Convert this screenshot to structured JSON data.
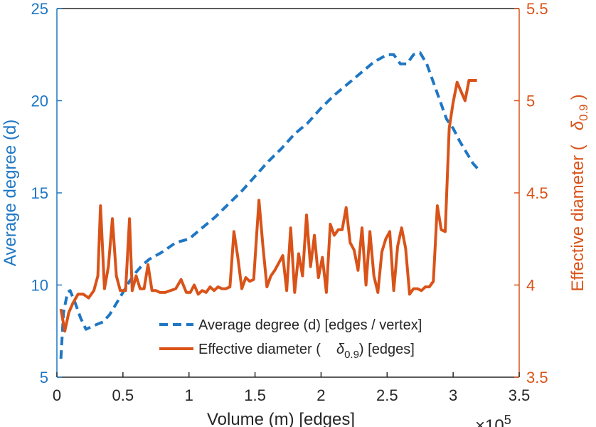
{
  "chart_data": {
    "type": "line",
    "xlabel": "Volume (m) [edges]",
    "x_exponent_label": "×10",
    "x_exponent_power": "5",
    "xlim": [
      0,
      3.5
    ],
    "xticks": [
      "0",
      "0.5",
      "1",
      "1.5",
      "2",
      "2.5",
      "3",
      "3.5"
    ],
    "left_axis": {
      "label": "Average degree (d)",
      "ylim": [
        5,
        25
      ],
      "ticks": [
        "5",
        "10",
        "15",
        "20",
        "25"
      ],
      "color": "#1f77c4"
    },
    "right_axis": {
      "label_main": "Effective diameter (",
      "label_symbol": "δ",
      "label_sub": "0.9",
      "label_close": ")",
      "ylim": [
        3.5,
        5.5
      ],
      "ticks": [
        "3.5",
        "4",
        "4.5",
        "5",
        "5.5"
      ],
      "color": "#d95319"
    },
    "legend": {
      "entries": [
        {
          "label": "Average degree (d) [edges / vertex]"
        },
        {
          "label_pre": "Effective diameter (",
          "symbol": "δ",
          "sub": "0.9",
          "label_post": ") [edges]"
        }
      ]
    },
    "series": [
      {
        "name": "Average degree (d) [edges / vertex]",
        "axis": "left",
        "style": "dashed",
        "color": "#1f77c4",
        "x": [
          0.03,
          0.05,
          0.08,
          0.1,
          0.14,
          0.18,
          0.22,
          0.28,
          0.35,
          0.4,
          0.45,
          0.5,
          0.55,
          0.6,
          0.65,
          0.7,
          0.8,
          0.9,
          1.0,
          1.1,
          1.2,
          1.3,
          1.4,
          1.5,
          1.6,
          1.7,
          1.8,
          1.9,
          2.0,
          2.1,
          2.2,
          2.3,
          2.4,
          2.5,
          2.55,
          2.6,
          2.65,
          2.7,
          2.75,
          2.8,
          2.85,
          2.9,
          2.95,
          3.0,
          3.05,
          3.1,
          3.15,
          3.2
        ],
        "values": [
          6.0,
          8.5,
          9.6,
          9.7,
          9.0,
          8.2,
          7.6,
          7.8,
          8.0,
          8.4,
          9.0,
          9.6,
          10.2,
          10.7,
          11.1,
          11.4,
          11.8,
          12.3,
          12.5,
          13.1,
          13.7,
          14.4,
          15.1,
          15.9,
          16.7,
          17.4,
          18.2,
          18.8,
          19.6,
          20.3,
          20.9,
          21.5,
          22.1,
          22.5,
          22.5,
          22.0,
          22.0,
          22.5,
          22.6,
          22.0,
          21.0,
          20.0,
          19.0,
          18.5,
          17.8,
          17.2,
          16.6,
          16.2
        ]
      },
      {
        "name": "Effective diameter (δ0.9) [edges]",
        "axis": "right",
        "style": "solid",
        "color": "#d95319",
        "x": [
          0.03,
          0.06,
          0.09,
          0.12,
          0.16,
          0.2,
          0.24,
          0.28,
          0.31,
          0.33,
          0.36,
          0.39,
          0.42,
          0.45,
          0.48,
          0.52,
          0.55,
          0.57,
          0.6,
          0.63,
          0.66,
          0.69,
          0.72,
          0.75,
          0.78,
          0.82,
          0.86,
          0.9,
          0.94,
          0.98,
          1.01,
          1.04,
          1.07,
          1.1,
          1.13,
          1.16,
          1.19,
          1.22,
          1.25,
          1.28,
          1.31,
          1.34,
          1.37,
          1.4,
          1.43,
          1.46,
          1.49,
          1.53,
          1.56,
          1.59,
          1.62,
          1.65,
          1.68,
          1.71,
          1.74,
          1.77,
          1.8,
          1.83,
          1.86,
          1.89,
          1.92,
          1.95,
          1.98,
          2.01,
          2.04,
          2.07,
          2.1,
          2.13,
          2.16,
          2.19,
          2.22,
          2.25,
          2.28,
          2.31,
          2.34,
          2.37,
          2.4,
          2.43,
          2.46,
          2.49,
          2.52,
          2.55,
          2.58,
          2.61,
          2.64,
          2.67,
          2.7,
          2.73,
          2.76,
          2.79,
          2.82,
          2.85,
          2.88,
          2.91,
          2.94,
          2.97,
          3.0,
          3.03,
          3.06,
          3.09,
          3.12,
          3.15,
          3.18
        ],
        "values": [
          3.87,
          3.75,
          3.85,
          3.9,
          3.95,
          3.95,
          3.93,
          3.97,
          4.05,
          4.43,
          3.98,
          4.1,
          4.36,
          4.05,
          3.97,
          3.97,
          4.36,
          3.97,
          4.05,
          3.98,
          3.98,
          4.11,
          3.97,
          3.97,
          3.96,
          3.96,
          3.97,
          3.98,
          4.03,
          3.96,
          3.96,
          4.0,
          3.95,
          3.97,
          3.96,
          3.99,
          3.97,
          3.99,
          3.98,
          3.98,
          3.99,
          4.29,
          4.15,
          3.98,
          4.04,
          4.02,
          4.03,
          4.46,
          4.21,
          3.99,
          4.05,
          4.08,
          4.12,
          4.16,
          3.97,
          4.31,
          3.96,
          4.17,
          4.05,
          4.38,
          4.1,
          4.27,
          4.04,
          4.15,
          3.96,
          4.33,
          4.27,
          4.3,
          4.3,
          4.42,
          4.23,
          4.19,
          4.08,
          4.31,
          4.0,
          4.29,
          4.05,
          3.96,
          4.18,
          4.25,
          4.29,
          3.97,
          4.21,
          4.31,
          4.2,
          3.95,
          3.98,
          3.98,
          3.97,
          3.99,
          3.99,
          4.02,
          4.43,
          4.3,
          4.29,
          4.85,
          4.99,
          5.1,
          5.05,
          5.0,
          5.11,
          5.11,
          5.11
        ]
      }
    ]
  }
}
